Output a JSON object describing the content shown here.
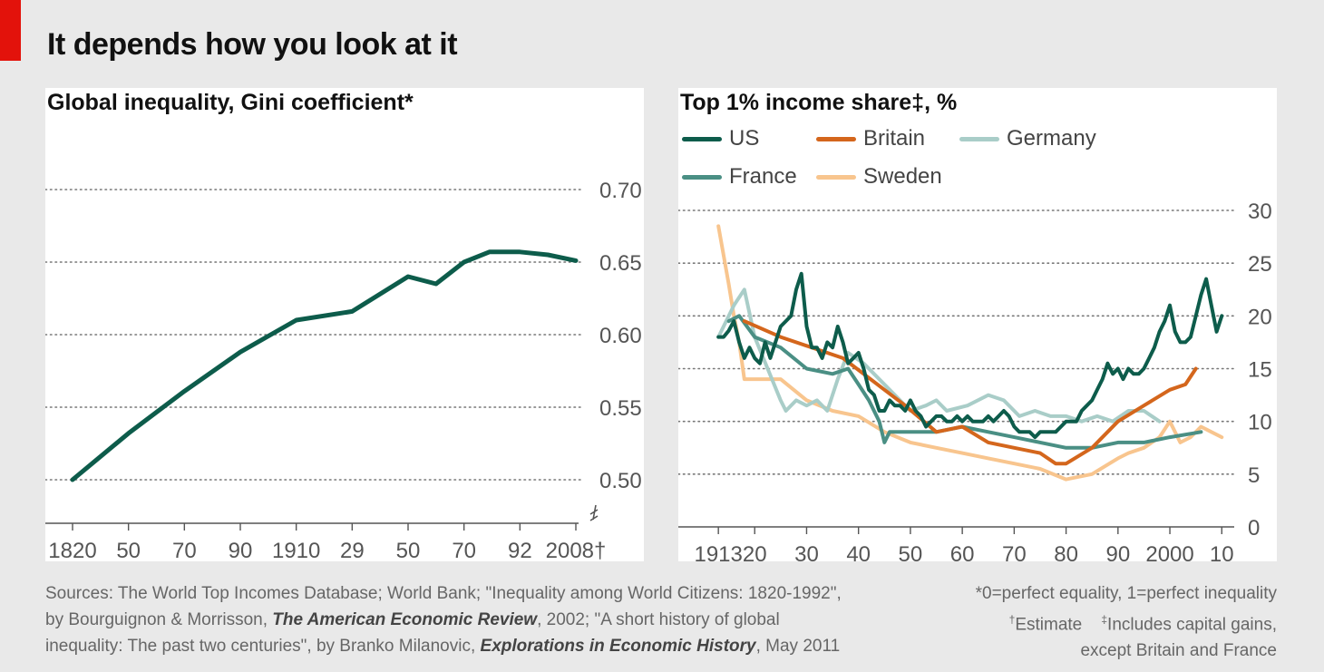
{
  "headline": "It depends how you look at it",
  "colors": {
    "accent_red": "#e3120b",
    "US": "#0d5c4b",
    "Britain": "#d4661c",
    "Germany": "#a9cdc8",
    "France": "#4a8f84",
    "Sweden": "#f8c58e",
    "gini": "#0d5c4b"
  },
  "footer": {
    "sources_1": "Sources: The World Top Incomes Database; World Bank; \"Inequality among World Citizens: 1820-1992\",",
    "sources_2a": "by Bourguignon & Morrisson, ",
    "sources_2b": "The American Economic Review",
    "sources_2c": ", 2002; \"A short history of global",
    "sources_3a": "inequality: The past two centuries\", by Branko Milanovic, ",
    "sources_3b": "Explorations in Economic History",
    "sources_3c": ", May 2011",
    "note_1": "*0=perfect equality, 1=perfect inequality",
    "note_2a": "†",
    "note_2b": "Estimate",
    "note_2c": "‡",
    "note_2d": "Includes capital gains,",
    "note_3": "except Britain and France"
  },
  "chart_data": [
    {
      "type": "line",
      "title": "Global inequality, Gini coefficient*",
      "x_tick_labels": [
        "1820",
        "50",
        "70",
        "90",
        "1910",
        "29",
        "50",
        "70",
        "92",
        "2008†"
      ],
      "x_tick_years": [
        1820,
        1850,
        1870,
        1890,
        1910,
        1929,
        1950,
        1970,
        1992,
        2008
      ],
      "y_ticks": [
        0.5,
        0.55,
        0.6,
        0.65,
        0.7
      ],
      "y_tick_labels": [
        "0.50",
        "0.55",
        "0.60",
        "0.65",
        "0.70"
      ],
      "ylim": [
        0.47,
        0.72
      ],
      "axis_break": true,
      "grid": true,
      "series": [
        {
          "x": [
            1820,
            1850,
            1870,
            1890,
            1910,
            1929,
            1950,
            1960,
            1970,
            1980,
            1992,
            2000,
            2008
          ],
          "y": [
            0.5,
            0.532,
            0.561,
            0.588,
            0.61,
            0.616,
            0.64,
            0.635,
            0.65,
            0.657,
            0.657,
            0.655,
            0.651
          ]
        }
      ]
    },
    {
      "type": "line",
      "title": "Top 1% income share‡, %",
      "x_tick_labels": [
        "1913",
        "20",
        "30",
        "40",
        "50",
        "60",
        "70",
        "80",
        "90",
        "2000",
        "10"
      ],
      "x_tick_years": [
        1913,
        1920,
        1930,
        1940,
        1950,
        1960,
        1970,
        1980,
        1990,
        2000,
        2010
      ],
      "y_ticks": [
        0,
        5,
        10,
        15,
        20,
        25,
        30
      ],
      "y_tick_labels": [
        "0",
        "5",
        "10",
        "15",
        "20",
        "25",
        "30"
      ],
      "xlim": [
        1910,
        2011
      ],
      "ylim": [
        0,
        30
      ],
      "grid": true,
      "legend": "top-left",
      "series": [
        {
          "name": "US",
          "x": [
            1913,
            1914,
            1915,
            1916,
            1917,
            1918,
            1919,
            1920,
            1921,
            1922,
            1923,
            1924,
            1925,
            1926,
            1927,
            1928,
            1929,
            1930,
            1931,
            1932,
            1933,
            1934,
            1935,
            1936,
            1937,
            1938,
            1939,
            1940,
            1941,
            1942,
            1943,
            1944,
            1945,
            1946,
            1947,
            1948,
            1949,
            1950,
            1951,
            1952,
            1953,
            1954,
            1955,
            1956,
            1957,
            1958,
            1959,
            1960,
            1961,
            1962,
            1963,
            1964,
            1965,
            1966,
            1967,
            1968,
            1969,
            1970,
            1971,
            1972,
            1973,
            1974,
            1975,
            1976,
            1977,
            1978,
            1979,
            1980,
            1981,
            1982,
            1983,
            1984,
            1985,
            1986,
            1987,
            1988,
            1989,
            1990,
            1991,
            1992,
            1993,
            1994,
            1995,
            1996,
            1997,
            1998,
            1999,
            2000,
            2001,
            2002,
            2003,
            2004,
            2005,
            2006,
            2007,
            2008,
            2009,
            2010
          ],
          "y": [
            18.0,
            18.0,
            18.6,
            19.5,
            17.5,
            16.0,
            17.0,
            16.0,
            15.5,
            17.5,
            16.0,
            17.5,
            19.0,
            19.5,
            20.0,
            22.5,
            24.0,
            19.0,
            17.0,
            17.0,
            16.0,
            17.5,
            17.0,
            19.0,
            17.5,
            15.5,
            16.0,
            16.5,
            15.0,
            13.0,
            12.5,
            11.0,
            11.0,
            12.0,
            11.5,
            11.5,
            11.0,
            12.0,
            11.0,
            10.5,
            9.5,
            10.0,
            10.5,
            10.5,
            10.0,
            10.0,
            10.5,
            10.0,
            10.5,
            10.0,
            10.0,
            10.0,
            10.5,
            10.0,
            10.5,
            11.0,
            10.5,
            9.5,
            9.0,
            9.0,
            9.0,
            8.5,
            9.0,
            9.0,
            9.0,
            9.0,
            9.5,
            10.0,
            10.0,
            10.0,
            11.0,
            11.5,
            12.0,
            13.0,
            14.0,
            15.5,
            14.5,
            15.0,
            14.0,
            15.0,
            14.5,
            14.5,
            15.0,
            16.0,
            17.0,
            18.5,
            19.5,
            21.0,
            18.5,
            17.5,
            17.5,
            18.0,
            20.0,
            22.0,
            23.5,
            21.0,
            18.5,
            20.0
          ]
        },
        {
          "name": "Britain",
          "x": [
            1918,
            1925,
            1937,
            1945,
            1949,
            1955,
            1960,
            1965,
            1970,
            1975,
            1978,
            1980,
            1985,
            1990,
            1995,
            2000,
            2003,
            2005
          ],
          "y": [
            19.5,
            18.0,
            16.0,
            13.0,
            11.5,
            9.0,
            9.5,
            8.0,
            7.5,
            7.0,
            6.0,
            6.0,
            7.5,
            10.0,
            11.5,
            13.0,
            13.5,
            15.0
          ]
        },
        {
          "name": "Germany",
          "x": [
            1913,
            1916,
            1918,
            1920,
            1925,
            1926,
            1928,
            1930,
            1932,
            1934,
            1936,
            1938,
            1941,
            1950,
            1953,
            1955,
            1957,
            1961,
            1965,
            1968,
            1971,
            1974,
            1977,
            1980,
            1983,
            1986,
            1989,
            1992,
            1995,
            1998
          ],
          "y": [
            18.0,
            21.0,
            22.5,
            18.0,
            12.0,
            11.0,
            12.0,
            11.5,
            12.0,
            11.0,
            14.0,
            16.5,
            15.5,
            11.0,
            11.5,
            12.0,
            11.0,
            11.5,
            12.5,
            12.0,
            10.5,
            11.0,
            10.5,
            10.5,
            10.0,
            10.5,
            10.0,
            11.0,
            11.0,
            10.0
          ]
        },
        {
          "name": "France",
          "x": [
            1915,
            1917,
            1920,
            1925,
            1930,
            1935,
            1938,
            1940,
            1942,
            1944,
            1945,
            1946,
            1950,
            1955,
            1960,
            1965,
            1970,
            1975,
            1980,
            1985,
            1990,
            1995,
            2000,
            2006
          ],
          "y": [
            19.5,
            20.0,
            18.0,
            17.0,
            15.0,
            14.5,
            15.0,
            13.5,
            12.0,
            10.0,
            8.0,
            9.0,
            9.0,
            9.0,
            9.5,
            9.0,
            8.5,
            8.0,
            7.5,
            7.5,
            8.0,
            8.0,
            8.5,
            9.0
          ]
        },
        {
          "name": "Sweden",
          "x": [
            1913,
            1915,
            1916,
            1917,
            1918,
            1920,
            1925,
            1930,
            1935,
            1940,
            1945,
            1950,
            1955,
            1960,
            1965,
            1970,
            1975,
            1980,
            1985,
            1990,
            1992,
            1995,
            1998,
            2000,
            2002,
            2004,
            2006,
            2008,
            2010
          ],
          "y": [
            28.5,
            23.0,
            20.0,
            17.5,
            14.0,
            14.0,
            14.0,
            12.0,
            11.0,
            10.5,
            9.0,
            8.0,
            7.5,
            7.0,
            6.5,
            6.0,
            5.5,
            4.5,
            5.0,
            6.5,
            7.0,
            7.5,
            8.5,
            10.0,
            8.0,
            8.5,
            9.5,
            9.0,
            8.5
          ]
        }
      ]
    }
  ]
}
